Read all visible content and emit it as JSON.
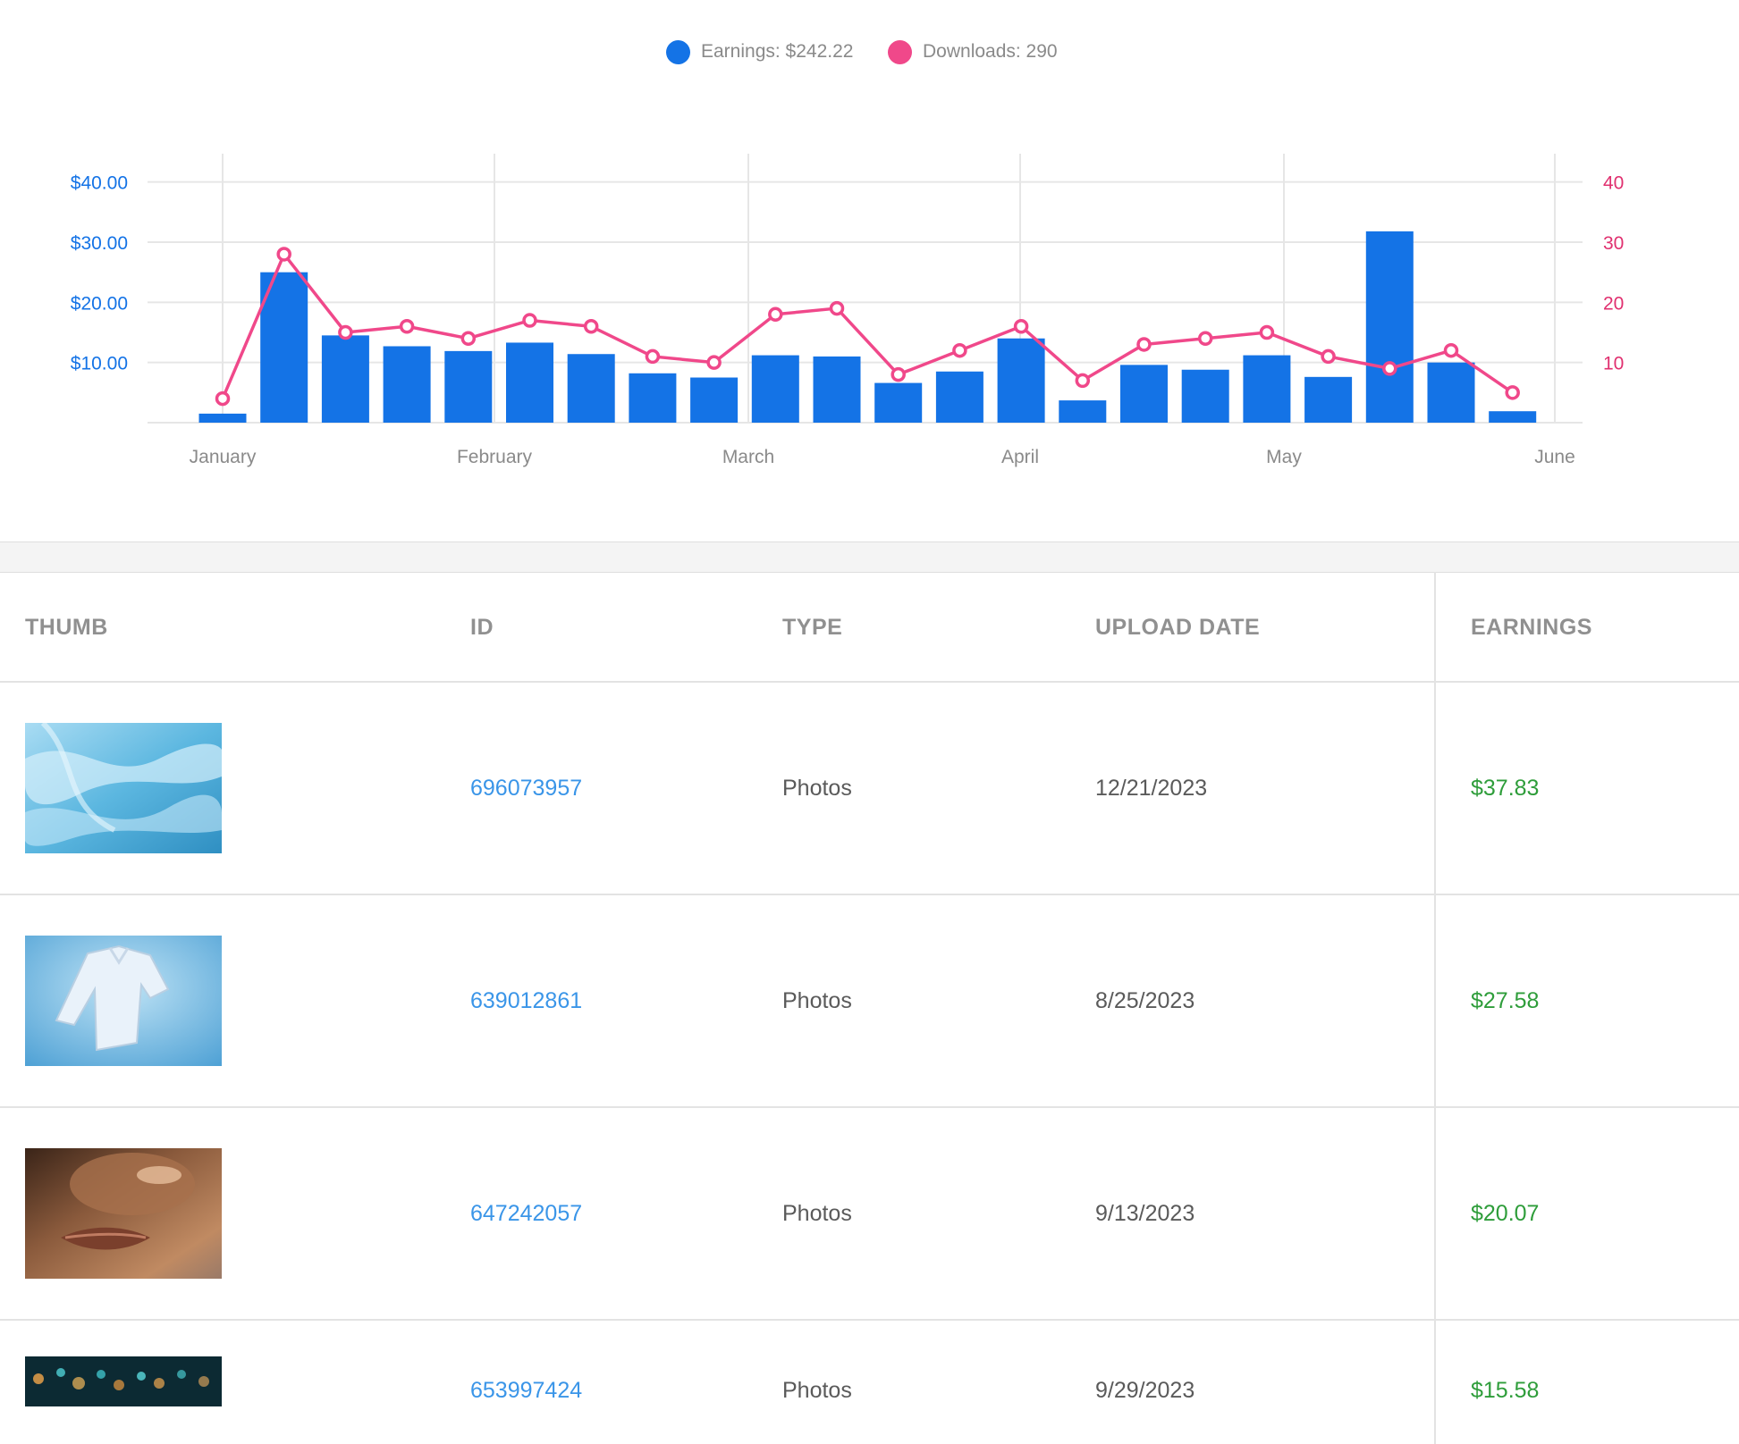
{
  "legend": {
    "earnings_label": "Earnings: $242.22",
    "downloads_label": "Downloads: 290",
    "earnings_color": "#1473e6",
    "downloads_color": "#f0488a"
  },
  "chart_data": {
    "type": "bar+line",
    "title": "",
    "x_labels": [
      "January",
      "February",
      "March",
      "April",
      "May",
      "June"
    ],
    "y_left": {
      "ticks": [
        "$10.00",
        "$20.00",
        "$30.00",
        "$40.00"
      ],
      "tick_values": [
        10,
        20,
        30,
        40
      ],
      "range": [
        0,
        45
      ],
      "color": "#1473e6"
    },
    "y_right": {
      "ticks": [
        "10",
        "20",
        "30",
        "40"
      ],
      "tick_values": [
        10,
        20,
        30,
        40
      ],
      "range": [
        0,
        45
      ],
      "color": "#e0306f"
    },
    "series": [
      {
        "name": "Earnings: $242.22",
        "type": "bar",
        "axis": "left",
        "color": "#1473e6",
        "values": [
          1.5,
          25,
          14.5,
          12.7,
          11.9,
          13.3,
          11.4,
          8.2,
          7.5,
          11.2,
          11.0,
          6.6,
          8.5,
          14.0,
          3.7,
          9.6,
          8.8,
          11.2,
          7.6,
          31.8,
          10.0,
          1.9
        ]
      },
      {
        "name": "Downloads: 290",
        "type": "line",
        "axis": "right",
        "color": "#f0488a",
        "values": [
          4,
          28,
          15,
          16,
          14,
          17,
          16,
          11,
          10,
          18,
          19,
          8,
          12,
          16,
          7,
          13,
          14,
          15,
          11,
          9,
          12,
          5
        ]
      }
    ],
    "grid": true,
    "legend_position": "top-center"
  },
  "table": {
    "headers": {
      "thumb": "THUMB",
      "id": "ID",
      "type": "TYPE",
      "upload_date": "UPLOAD DATE",
      "earnings": "EARNINGS"
    },
    "rows": [
      {
        "id": "696073957",
        "type": "Photos",
        "upload_date": "12/21/2023",
        "earnings": "$37.83"
      },
      {
        "id": "639012861",
        "type": "Photos",
        "upload_date": "8/25/2023",
        "earnings": "$27.58"
      },
      {
        "id": "647242057",
        "type": "Photos",
        "upload_date": "9/13/2023",
        "earnings": "$20.07"
      },
      {
        "id": "653997424",
        "type": "Photos",
        "upload_date": "9/29/2023",
        "earnings": "$15.58"
      }
    ]
  }
}
